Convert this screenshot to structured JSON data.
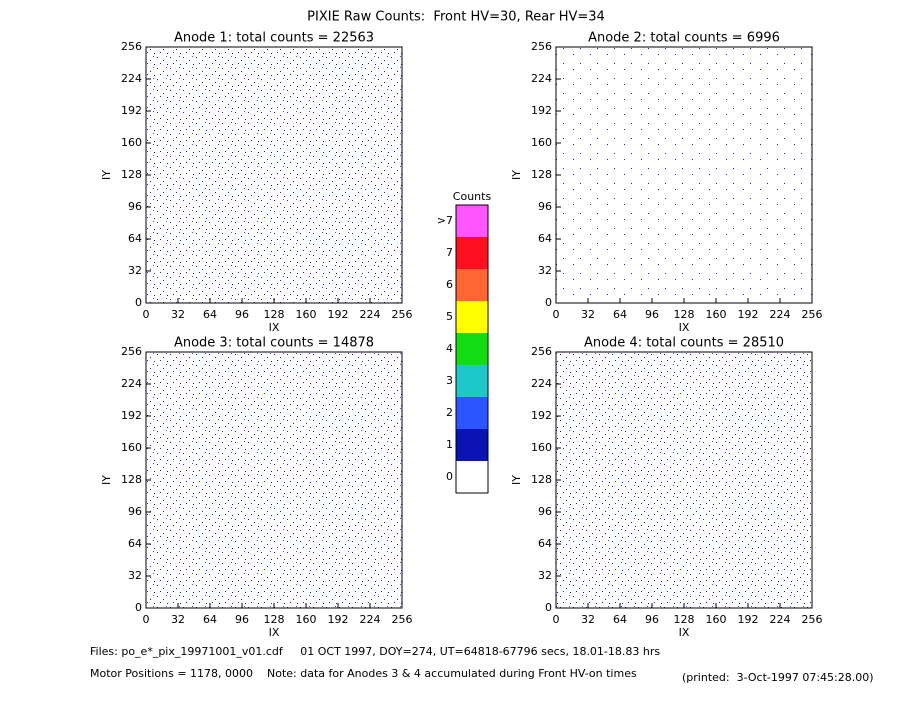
{
  "title": "PIXIE Raw Counts:  Front HV=30, Rear HV=34",
  "chart_data": [
    {
      "type": "heatmap",
      "title": "Anode 1: total counts = 22563",
      "xlabel": "IX",
      "ylabel": "IY",
      "xlim": [
        0,
        256
      ],
      "ylim": [
        0,
        256
      ],
      "xticks": [
        0,
        32,
        64,
        96,
        128,
        160,
        192,
        224,
        256
      ],
      "yticks": [
        0,
        32,
        64,
        96,
        128,
        160,
        192,
        224,
        256
      ]
    },
    {
      "type": "heatmap",
      "title": "Anode 2: total counts = 6996",
      "xlabel": "IX",
      "ylabel": "IY",
      "xlim": [
        0,
        256
      ],
      "ylim": [
        0,
        256
      ],
      "xticks": [
        0,
        32,
        64,
        96,
        128,
        160,
        192,
        224,
        256
      ],
      "yticks": [
        0,
        32,
        64,
        96,
        128,
        160,
        192,
        224,
        256
      ]
    },
    {
      "type": "heatmap",
      "title": "Anode 3: total counts = 14878",
      "xlabel": "IX",
      "ylabel": "IY",
      "xlim": [
        0,
        256
      ],
      "ylim": [
        0,
        256
      ],
      "xticks": [
        0,
        32,
        64,
        96,
        128,
        160,
        192,
        224,
        256
      ],
      "yticks": [
        0,
        32,
        64,
        96,
        128,
        160,
        192,
        224,
        256
      ]
    },
    {
      "type": "heatmap",
      "title": "Anode 4: total counts = 28510",
      "xlabel": "IX",
      "ylabel": "IY",
      "xlim": [
        0,
        256
      ],
      "ylim": [
        0,
        256
      ],
      "xticks": [
        0,
        32,
        64,
        96,
        128,
        160,
        192,
        224,
        256
      ],
      "yticks": [
        0,
        32,
        64,
        96,
        128,
        160,
        192,
        224,
        256
      ]
    }
  ],
  "colorbar": {
    "title": "Counts",
    "labels": [
      "0",
      "1",
      "2",
      "3",
      "4",
      "5",
      "6",
      "7",
      ">7"
    ],
    "colors": [
      "#ffffff",
      "#0a14b4",
      "#2a55ff",
      "#1ec8c8",
      "#14dc14",
      "#ffff00",
      "#ff6633",
      "#ff1020",
      "#ff55ff"
    ]
  },
  "footer": {
    "files": "Files: po_e*_pix_19971001_v01.cdf     01 OCT 1997, DOY=274, UT=64818-67796 secs, 18.01-18.83 hrs",
    "motor": "Motor Positions = 1178, 0000    Note: data for Anodes 3 & 4 accumulated during Front HV-on times",
    "printed": "(printed:  3-Oct-1997 07:45:28.00)"
  }
}
